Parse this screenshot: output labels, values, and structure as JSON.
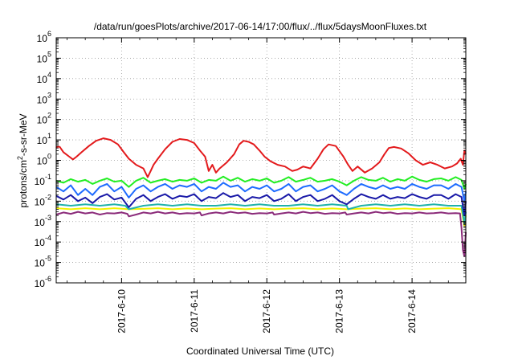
{
  "chart_data": {
    "type": "line",
    "title": "/data/run/goesPlots/archive/2017-06-14/17:00/flux/../flux/5daysMoonFluxes.txt",
    "xlabel": "Coordinated Universal Time (UTC)",
    "ylabel": "protons/cm2-s-sr-MeV",
    "ylabel_parts": {
      "base": "protons/cm",
      "sup": "2",
      "rest": "-s-sr-MeV"
    },
    "y_scale": "log",
    "ylim": [
      1e-06,
      1000000.0
    ],
    "y_tick_exponents": [
      -6,
      -5,
      -4,
      -3,
      -2,
      -1,
      0,
      1,
      2,
      3,
      4,
      5,
      6
    ],
    "y_tick_base": "10",
    "x_tick_labels": [
      "2017-6-10",
      "2017-6-11",
      "2017-6-12",
      "2017-6-13",
      "2017-6-14"
    ],
    "x_range_days": [
      9.1,
      14.74
    ],
    "grid": true,
    "legend": "none",
    "series": [
      {
        "color": "#e31a1c",
        "x": [
          9.1,
          9.12,
          9.15,
          9.2,
          9.28,
          9.33,
          9.38,
          9.45,
          9.55,
          9.65,
          9.75,
          9.85,
          9.95,
          10.03,
          10.1,
          10.2,
          10.3,
          10.36,
          10.4,
          10.44,
          10.5,
          10.6,
          10.7,
          10.8,
          10.9,
          11.0,
          11.08,
          11.15,
          11.2,
          11.25,
          11.3,
          11.35,
          11.45,
          11.55,
          11.62,
          11.68,
          11.75,
          11.82,
          11.9,
          11.97,
          12.05,
          12.15,
          12.25,
          12.35,
          12.42,
          12.5,
          12.6,
          12.7,
          12.78,
          12.85,
          12.95,
          13.05,
          13.12,
          13.18,
          13.25,
          13.35,
          13.45,
          13.55,
          13.62,
          13.68,
          13.75,
          13.85,
          13.95,
          14.05,
          14.15,
          14.25,
          14.35,
          14.45,
          14.55,
          14.62,
          14.67,
          14.7,
          14.72,
          14.74
        ],
        "y": [
          4,
          4.8,
          4.5,
          2.5,
          1.5,
          1.1,
          1.5,
          2.5,
          5,
          9,
          12,
          10,
          6,
          2.5,
          1.2,
          0.6,
          0.4,
          0.15,
          0.3,
          0.6,
          1.2,
          3.5,
          8,
          11,
          10,
          7,
          3,
          1.5,
          0.3,
          0.6,
          0.25,
          0.4,
          0.8,
          2,
          6,
          9,
          8,
          6,
          3,
          1.5,
          0.9,
          0.6,
          0.5,
          0.3,
          0.35,
          0.5,
          0.4,
          1.2,
          3.5,
          6,
          5,
          1.6,
          0.6,
          0.3,
          0.5,
          0.25,
          0.4,
          0.8,
          2,
          4,
          4.5,
          3.8,
          2.2,
          1,
          0.6,
          0.8,
          0.6,
          0.4,
          0.5,
          0.7,
          1.2,
          0.6,
          3,
          2
        ]
      },
      {
        "color": "#22ee22",
        "x": [
          9.1,
          9.2,
          9.3,
          9.4,
          9.5,
          9.6,
          9.7,
          9.8,
          9.9,
          10.0,
          10.1,
          10.2,
          10.3,
          10.4,
          10.5,
          10.6,
          10.7,
          10.8,
          10.9,
          11.0,
          11.1,
          11.2,
          11.3,
          11.4,
          11.5,
          11.6,
          11.7,
          11.8,
          11.9,
          12.0,
          12.1,
          12.2,
          12.3,
          12.4,
          12.5,
          12.6,
          12.7,
          12.8,
          12.9,
          13.0,
          13.1,
          13.2,
          13.3,
          13.4,
          13.5,
          13.6,
          13.7,
          13.8,
          13.9,
          14.0,
          14.1,
          14.2,
          14.3,
          14.4,
          14.5,
          14.6,
          14.68,
          14.72,
          14.74
        ],
        "y": [
          0.1,
          0.08,
          0.12,
          0.09,
          0.11,
          0.07,
          0.1,
          0.13,
          0.09,
          0.1,
          0.05,
          0.1,
          0.14,
          0.08,
          0.1,
          0.12,
          0.09,
          0.11,
          0.1,
          0.13,
          0.08,
          0.11,
          0.1,
          0.16,
          0.1,
          0.14,
          0.09,
          0.12,
          0.1,
          0.13,
          0.08,
          0.1,
          0.15,
          0.09,
          0.11,
          0.14,
          0.09,
          0.1,
          0.12,
          0.09,
          0.06,
          0.1,
          0.15,
          0.11,
          0.1,
          0.14,
          0.09,
          0.12,
          0.1,
          0.16,
          0.11,
          0.09,
          0.12,
          0.13,
          0.1,
          0.15,
          0.11,
          0.04,
          0.07
        ]
      },
      {
        "color": "#1e6bff",
        "x": [
          9.1,
          9.2,
          9.3,
          9.4,
          9.5,
          9.6,
          9.7,
          9.8,
          9.9,
          10.0,
          10.1,
          10.2,
          10.3,
          10.4,
          10.5,
          10.6,
          10.7,
          10.8,
          10.9,
          11.0,
          11.1,
          11.2,
          11.3,
          11.4,
          11.5,
          11.6,
          11.7,
          11.8,
          11.9,
          12.0,
          12.1,
          12.2,
          12.3,
          12.4,
          12.5,
          12.6,
          12.7,
          12.8,
          12.9,
          13.0,
          13.1,
          13.2,
          13.3,
          13.4,
          13.5,
          13.6,
          13.7,
          13.8,
          13.9,
          14.0,
          14.1,
          14.2,
          14.3,
          14.4,
          14.5,
          14.6,
          14.68,
          14.72,
          14.74
        ],
        "y": [
          0.05,
          0.03,
          0.06,
          0.02,
          0.04,
          0.02,
          0.05,
          0.07,
          0.03,
          0.05,
          0.015,
          0.04,
          0.06,
          0.03,
          0.05,
          0.07,
          0.04,
          0.06,
          0.05,
          0.07,
          0.03,
          0.05,
          0.04,
          0.08,
          0.05,
          0.06,
          0.03,
          0.05,
          0.04,
          0.06,
          0.03,
          0.04,
          0.07,
          0.03,
          0.05,
          0.06,
          0.03,
          0.04,
          0.06,
          0.03,
          0.02,
          0.04,
          0.07,
          0.05,
          0.04,
          0.06,
          0.04,
          0.05,
          0.04,
          0.07,
          0.05,
          0.04,
          0.06,
          0.06,
          0.04,
          0.07,
          0.05,
          0.01,
          0.03
        ]
      },
      {
        "color": "#1a1aa8",
        "x": [
          9.1,
          9.2,
          9.3,
          9.4,
          9.5,
          9.6,
          9.7,
          9.8,
          9.9,
          10.0,
          10.1,
          10.2,
          10.3,
          10.4,
          10.5,
          10.6,
          10.7,
          10.8,
          10.9,
          11.0,
          11.1,
          11.2,
          11.3,
          11.4,
          11.5,
          11.6,
          11.7,
          11.8,
          11.9,
          12.0,
          12.1,
          12.2,
          12.3,
          12.4,
          12.5,
          12.6,
          12.7,
          12.8,
          12.9,
          13.0,
          13.1,
          13.2,
          13.3,
          13.4,
          13.5,
          13.6,
          13.7,
          13.8,
          13.9,
          14.0,
          14.1,
          14.2,
          14.3,
          14.4,
          14.5,
          14.6,
          14.68,
          14.72,
          14.74
        ],
        "y": [
          0.018,
          0.012,
          0.02,
          0.01,
          0.015,
          0.008,
          0.016,
          0.022,
          0.012,
          0.015,
          0.005,
          0.013,
          0.02,
          0.01,
          0.016,
          0.022,
          0.013,
          0.018,
          0.016,
          0.022,
          0.01,
          0.016,
          0.014,
          0.025,
          0.016,
          0.02,
          0.01,
          0.016,
          0.014,
          0.02,
          0.01,
          0.013,
          0.022,
          0.01,
          0.016,
          0.02,
          0.01,
          0.013,
          0.02,
          0.01,
          0.007,
          0.013,
          0.022,
          0.016,
          0.013,
          0.02,
          0.013,
          0.016,
          0.014,
          0.022,
          0.016,
          0.013,
          0.02,
          0.02,
          0.013,
          0.022,
          0.016,
          0.002,
          0.01
        ]
      },
      {
        "color": "#20b2aa",
        "x": [
          9.1,
          9.3,
          9.5,
          9.7,
          9.9,
          10.05,
          10.1,
          10.3,
          10.5,
          10.7,
          10.9,
          11.1,
          11.3,
          11.5,
          11.7,
          11.9,
          12.1,
          12.3,
          12.5,
          12.7,
          12.9,
          13.1,
          13.12,
          13.3,
          13.5,
          13.7,
          13.9,
          14.1,
          14.3,
          14.5,
          14.68,
          14.72,
          14.74
        ],
        "y": [
          0.007,
          0.006,
          0.007,
          0.006,
          0.007,
          0.006,
          0.004,
          0.006,
          0.007,
          0.006,
          0.007,
          0.006,
          0.006,
          0.007,
          0.006,
          0.007,
          0.006,
          0.006,
          0.007,
          0.006,
          0.007,
          0.006,
          0.004,
          0.006,
          0.007,
          0.006,
          0.007,
          0.006,
          0.007,
          0.006,
          0.006,
          0.0008,
          0.003
        ]
      },
      {
        "color": "#f2f200",
        "x": [
          9.1,
          9.3,
          9.5,
          9.7,
          9.9,
          10.1,
          10.3,
          10.5,
          10.7,
          10.9,
          11.1,
          11.3,
          11.5,
          11.7,
          11.9,
          12.1,
          12.3,
          12.5,
          12.7,
          12.9,
          13.1,
          13.3,
          13.5,
          13.7,
          13.9,
          14.1,
          14.3,
          14.5,
          14.68,
          14.72,
          14.74
        ],
        "y": [
          0.0045,
          0.004,
          0.0045,
          0.004,
          0.0045,
          0.004,
          0.0042,
          0.0045,
          0.004,
          0.0044,
          0.004,
          0.0043,
          0.0045,
          0.004,
          0.0044,
          0.004,
          0.0043,
          0.0045,
          0.004,
          0.0044,
          0.004,
          0.0043,
          0.0045,
          0.004,
          0.0044,
          0.004,
          0.0043,
          0.0045,
          0.004,
          0.0006,
          0.002
        ]
      },
      {
        "color": "#8b2b7a",
        "x": [
          9.1,
          9.2,
          9.3,
          9.4,
          9.5,
          9.6,
          9.7,
          9.8,
          9.9,
          10.0,
          10.08,
          10.1,
          10.2,
          10.3,
          10.4,
          10.5,
          10.6,
          10.7,
          10.8,
          10.9,
          11.0,
          11.08,
          11.1,
          11.2,
          11.3,
          11.4,
          11.5,
          11.6,
          11.7,
          11.8,
          11.9,
          12.0,
          12.08,
          12.1,
          12.2,
          12.3,
          12.4,
          12.5,
          12.6,
          12.7,
          12.8,
          12.9,
          13.0,
          13.08,
          13.1,
          13.2,
          13.3,
          13.4,
          13.5,
          13.6,
          13.7,
          13.8,
          13.9,
          14.0,
          14.1,
          14.2,
          14.3,
          14.4,
          14.5,
          14.6,
          14.66,
          14.68,
          14.7,
          14.72,
          14.74
        ],
        "y": [
          0.0022,
          0.0028,
          0.0024,
          0.003,
          0.0025,
          0.0028,
          0.0022,
          0.0026,
          0.0025,
          0.0028,
          0.0024,
          0.0018,
          0.0022,
          0.0028,
          0.0025,
          0.003,
          0.0025,
          0.0028,
          0.0024,
          0.0026,
          0.0025,
          0.0028,
          0.002,
          0.0025,
          0.0028,
          0.0025,
          0.003,
          0.0026,
          0.0028,
          0.0024,
          0.0026,
          0.0025,
          0.0028,
          0.0022,
          0.0025,
          0.0028,
          0.0025,
          0.003,
          0.0026,
          0.0028,
          0.0024,
          0.0026,
          0.0025,
          0.0028,
          0.0022,
          0.0025,
          0.0028,
          0.0025,
          0.003,
          0.0026,
          0.0028,
          0.0024,
          0.0026,
          0.0025,
          0.0028,
          0.0025,
          0.0026,
          0.0028,
          0.0025,
          0.0026,
          0.0025,
          0.0005,
          4e-05,
          2e-05,
          0.0003
        ]
      }
    ]
  }
}
